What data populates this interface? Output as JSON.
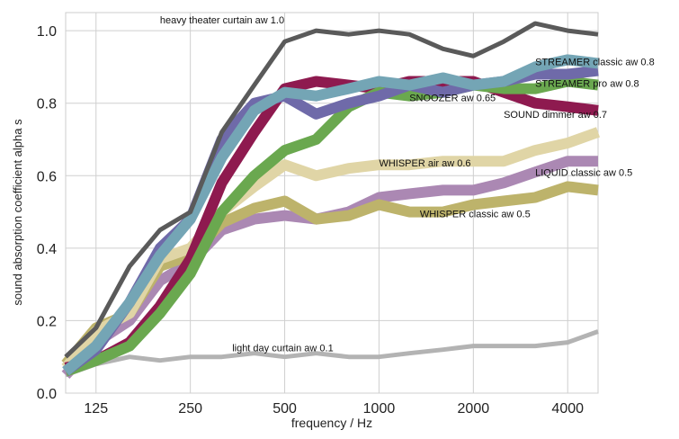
{
  "chart_data": {
    "type": "line",
    "title": "",
    "xlabel": "frequency / Hz",
    "ylabel": "sound absorption coefficient  alpha s",
    "x_scale": "log2",
    "xlim": [
      100,
      5000
    ],
    "ylim": [
      0,
      1.05
    ],
    "xticks": [
      125,
      250,
      500,
      1000,
      2000,
      4000
    ],
    "xtick_labels": [
      "125",
      "250",
      "500",
      "1000",
      "2000",
      "4000"
    ],
    "yticks": [
      0.0,
      0.2,
      0.4,
      0.6,
      0.8,
      1.0
    ],
    "ytick_labels": [
      "0.0",
      "0.2",
      "0.4",
      "0.6",
      "0.8",
      "1.0"
    ],
    "grid": true,
    "legend": "labels placed beside lines",
    "x": [
      100,
      125,
      160,
      200,
      250,
      315,
      400,
      500,
      630,
      800,
      1000,
      1250,
      1600,
      2000,
      2500,
      3150,
      4000,
      5000
    ],
    "series": [
      {
        "name": "light day curtain aw 0.1",
        "color": "#b3b3b3",
        "width": 5,
        "values": [
          0.05,
          0.08,
          0.1,
          0.09,
          0.1,
          0.1,
          0.11,
          0.1,
          0.11,
          0.1,
          0.1,
          0.11,
          0.12,
          0.13,
          0.13,
          0.13,
          0.14,
          0.17
        ]
      },
      {
        "name": "LIQUID classic aw 0.5",
        "color": "#ab88b3",
        "width": 12,
        "values": [
          0.05,
          0.14,
          0.2,
          0.31,
          0.36,
          0.45,
          0.48,
          0.49,
          0.48,
          0.5,
          0.54,
          0.55,
          0.56,
          0.56,
          0.58,
          0.61,
          0.64,
          0.64
        ]
      },
      {
        "name": "WHISPER classic aw 0.5",
        "color": "#bdb36b",
        "width": 12,
        "values": [
          0.08,
          0.18,
          0.22,
          0.35,
          0.38,
          0.47,
          0.51,
          0.53,
          0.48,
          0.49,
          0.52,
          0.5,
          0.5,
          0.52,
          0.53,
          0.54,
          0.57,
          0.56
        ]
      },
      {
        "name": "WHISPER air aw 0.6",
        "color": "#e0d5a6",
        "width": 12,
        "values": [
          0.07,
          0.17,
          0.22,
          0.37,
          0.4,
          0.5,
          0.57,
          0.63,
          0.6,
          0.62,
          0.63,
          0.63,
          0.64,
          0.64,
          0.64,
          0.67,
          0.69,
          0.72
        ]
      },
      {
        "name": "SOUND dimmer aw 0.7",
        "color": "#8e1a4f",
        "width": 12,
        "values": [
          0.07,
          0.09,
          0.14,
          0.24,
          0.37,
          0.58,
          0.72,
          0.84,
          0.86,
          0.85,
          0.84,
          0.86,
          0.86,
          0.86,
          0.83,
          0.8,
          0.79,
          0.78
        ]
      },
      {
        "name": "SNOOZER  aw 0.65",
        "color": "#6aa84f",
        "width": 12,
        "values": [
          0.06,
          0.09,
          0.13,
          0.22,
          0.33,
          0.5,
          0.6,
          0.67,
          0.7,
          0.79,
          0.83,
          0.82,
          0.83,
          0.85,
          0.84,
          0.84,
          0.86,
          0.85
        ]
      },
      {
        "name": "STREAMER pro aw 0.8",
        "color": "#6f6aa9",
        "width": 12,
        "values": [
          0.06,
          0.12,
          0.25,
          0.4,
          0.48,
          0.7,
          0.8,
          0.82,
          0.77,
          0.8,
          0.82,
          0.85,
          0.83,
          0.85,
          0.86,
          0.88,
          0.88,
          0.89
        ]
      },
      {
        "name": "STREAMER classic aw 0.8",
        "color": "#74a5b5",
        "width": 12,
        "values": [
          0.06,
          0.13,
          0.25,
          0.38,
          0.48,
          0.65,
          0.78,
          0.83,
          0.82,
          0.84,
          0.86,
          0.85,
          0.87,
          0.85,
          0.86,
          0.9,
          0.92,
          0.91
        ]
      },
      {
        "name": "heavy theater curtain aw 1.0",
        "color": "#5a5a5a",
        "width": 5,
        "values": [
          0.1,
          0.18,
          0.35,
          0.45,
          0.5,
          0.72,
          0.85,
          0.97,
          1.0,
          0.99,
          1.0,
          0.99,
          0.95,
          0.93,
          0.97,
          1.02,
          1.0,
          0.99
        ]
      }
    ],
    "annotations": [
      {
        "text": "heavy theater curtain aw 1.0",
        "x": 200,
        "y": 1.03,
        "anchor": "start"
      },
      {
        "text": "STREAMER classic aw 0.8",
        "x": 3150,
        "y": 0.915,
        "anchor": "start"
      },
      {
        "text": "STREAMER pro aw 0.8",
        "x": 3150,
        "y": 0.855,
        "anchor": "start"
      },
      {
        "text": "SNOOZER  aw 0.65",
        "x": 1250,
        "y": 0.815,
        "anchor": "start"
      },
      {
        "text": "SOUND dimmer aw 0.7",
        "x": 2500,
        "y": 0.77,
        "anchor": "start"
      },
      {
        "text": "WHISPER air aw 0.6",
        "x": 1000,
        "y": 0.635,
        "anchor": "start"
      },
      {
        "text": "LIQUID classic aw 0.5",
        "x": 3150,
        "y": 0.61,
        "anchor": "start"
      },
      {
        "text": "WHISPER classic aw 0.5",
        "x": 1350,
        "y": 0.495,
        "anchor": "start"
      },
      {
        "text": "light day curtain aw 0.1",
        "x": 340,
        "y": 0.125,
        "anchor": "start"
      }
    ]
  }
}
